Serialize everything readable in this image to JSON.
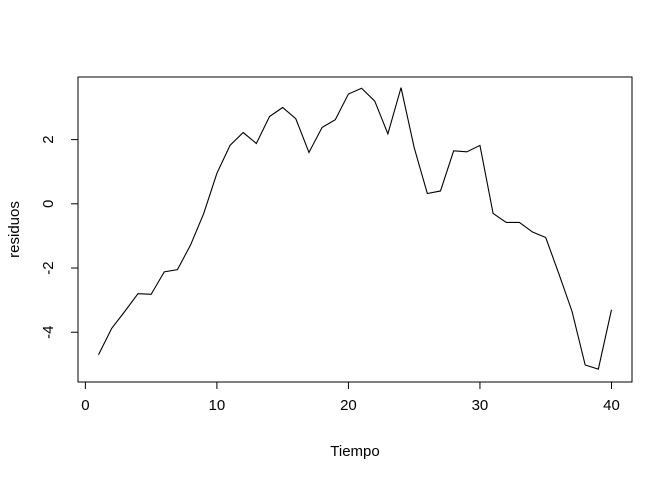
{
  "chart_data": {
    "type": "line",
    "xlabel": "Tiempo",
    "ylabel": "residuos",
    "xlim": [
      -0.56,
      41.56
    ],
    "ylim": [
      -5.55,
      3.95
    ],
    "xticks": [
      0,
      10,
      20,
      30,
      40
    ],
    "yticks": [
      -4,
      -2,
      0,
      2
    ],
    "xtick_labels": [
      "0",
      "10",
      "20",
      "30",
      "40"
    ],
    "ytick_labels": [
      "-4",
      "-2",
      "0",
      "2"
    ],
    "grid": false,
    "line_color": "#000000",
    "x": [
      1,
      2,
      3,
      4,
      5,
      6,
      7,
      8,
      9,
      10,
      11,
      12,
      13,
      14,
      15,
      16,
      17,
      18,
      19,
      20,
      21,
      22,
      23,
      24,
      25,
      26,
      27,
      28,
      29,
      30,
      31,
      32,
      33,
      34,
      35,
      36,
      37,
      38,
      39,
      40
    ],
    "y": [
      -4.7,
      -3.88,
      -3.35,
      -2.8,
      -2.82,
      -2.12,
      -2.05,
      -1.28,
      -0.3,
      0.95,
      1.82,
      2.22,
      1.88,
      2.72,
      3.0,
      2.65,
      1.6,
      2.38,
      2.62,
      3.42,
      3.6,
      3.2,
      2.18,
      3.62,
      1.75,
      0.32,
      0.4,
      1.65,
      1.62,
      1.82,
      -0.3,
      -0.58,
      -0.58,
      -0.88,
      -1.05,
      -2.18,
      -3.35,
      -5.02,
      -5.15,
      -3.3
    ]
  }
}
